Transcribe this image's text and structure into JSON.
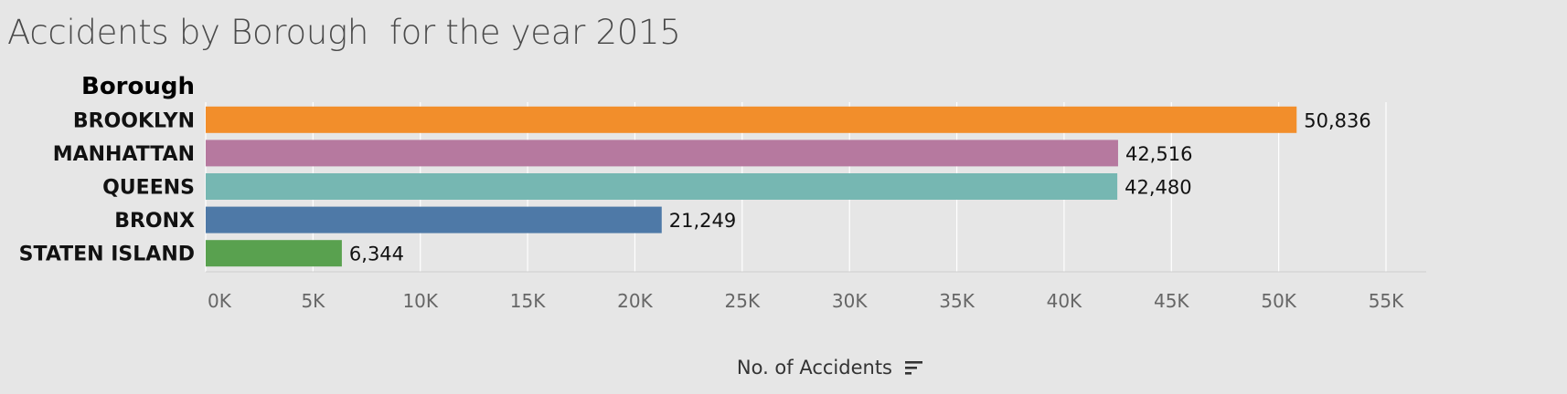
{
  "title": "Accidents by Borough  for the year 2015",
  "chart_data": {
    "type": "bar",
    "orientation": "horizontal",
    "title": "Accidents by Borough  for the year 2015",
    "row_header": "Borough",
    "categories": [
      "BROOKLYN",
      "MANHATTAN",
      "QUEENS",
      "BRONX",
      "STATEN ISLAND"
    ],
    "values": [
      50836,
      42516,
      42480,
      21249,
      6344
    ],
    "value_labels": [
      "50,836",
      "42,516",
      "42,480",
      "21,249",
      "6,344"
    ],
    "colors": [
      "#f28e2b",
      "#b6799f",
      "#76b7b2",
      "#4e79a7",
      "#59a14f"
    ],
    "xlabel": "No. of Accidents",
    "xlim": [
      0,
      55000
    ],
    "xticks": [
      0,
      5000,
      10000,
      15000,
      20000,
      25000,
      30000,
      35000,
      40000,
      45000,
      50000,
      55000
    ],
    "xtick_labels": [
      "0K",
      "5K",
      "10K",
      "15K",
      "20K",
      "25K",
      "30K",
      "35K",
      "40K",
      "45K",
      "50K",
      "55K"
    ],
    "grid": true,
    "sort_icon": "sort-descending-icon"
  }
}
